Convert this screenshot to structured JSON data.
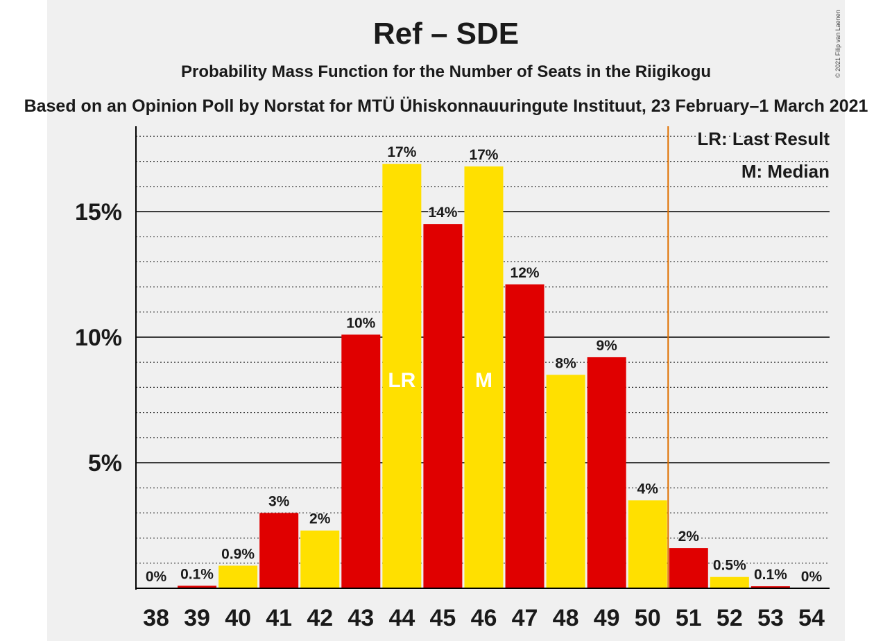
{
  "copyright": "© 2021 Filip van Laenen",
  "chart_data": {
    "type": "bar",
    "title": "Ref – SDE",
    "subtitle": "Probability Mass Function for the Number of Seats in the Riigikogu",
    "source": "Based on an Opinion Poll by Norstat for MTÜ Ühiskonnauuringute Instituut, 23 February–1 March 2021",
    "categories": [
      "38",
      "39",
      "40",
      "41",
      "42",
      "43",
      "44",
      "45",
      "46",
      "47",
      "48",
      "49",
      "50",
      "51",
      "52",
      "53",
      "54"
    ],
    "values": [
      0,
      0.1,
      0.9,
      3.0,
      2.3,
      10.1,
      16.9,
      14.5,
      16.8,
      12.1,
      8.5,
      9.2,
      3.5,
      1.6,
      0.45,
      0.08,
      0
    ],
    "labels": [
      "0%",
      "0.1%",
      "0.9%",
      "3%",
      "2%",
      "10%",
      "17%",
      "14%",
      "17%",
      "12%",
      "8%",
      "9%",
      "4%",
      "2%",
      "0.5%",
      "0.1%",
      "0%"
    ],
    "colors": [
      "#e00000",
      "#e00000",
      "#ffe000",
      "#e00000",
      "#ffe000",
      "#e00000",
      "#ffe000",
      "#e00000",
      "#ffe000",
      "#e00000",
      "#ffe000",
      "#e00000",
      "#ffe000",
      "#e00000",
      "#ffe000",
      "#e00000",
      "#ffe000"
    ],
    "bar_markers": {
      "6": "LR",
      "8": "M"
    },
    "yticks": [
      5,
      10,
      15
    ],
    "ytick_labels": [
      "5%",
      "10%",
      "15%"
    ],
    "minor_step": 1,
    "ylim": [
      0,
      18
    ],
    "last_result_line_between": [
      12,
      13
    ],
    "last_result_color": "#e07000",
    "legend": [
      "LR: Last Result",
      "M: Median"
    ],
    "legend_position": "top-right",
    "xlabel": "",
    "ylabel": ""
  }
}
